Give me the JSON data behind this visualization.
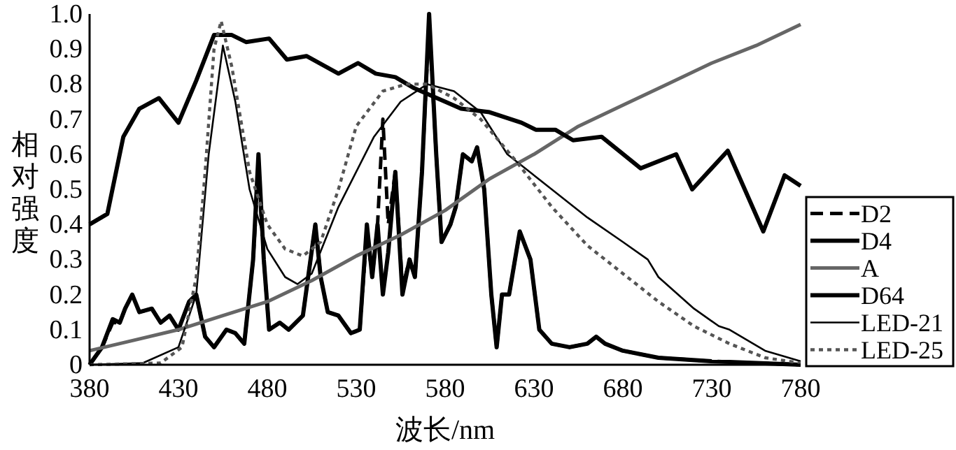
{
  "chart_data": {
    "type": "line",
    "xlabel": "波长/nm",
    "ylabel": "相对强度",
    "xlim": [
      380,
      780
    ],
    "ylim": [
      0,
      1.0
    ],
    "xticks": [
      380,
      430,
      480,
      530,
      580,
      630,
      680,
      730,
      780
    ],
    "yticks": [
      0,
      0.1,
      0.2,
      0.3,
      0.4,
      0.5,
      0.6,
      0.7,
      0.8,
      0.9,
      {
        "value": 1.0,
        "label": "1.0"
      }
    ],
    "grid": false,
    "legend": "bottom right",
    "marker": "none",
    "series": [
      {
        "name": "D2",
        "color": "#000000",
        "line_style": "dashed",
        "x": [
          380,
          387,
          393,
          397,
          400,
          404,
          408,
          415,
          420,
          425,
          430,
          436,
          440,
          445,
          450,
          457,
          462,
          467,
          472,
          475,
          478,
          481,
          487,
          492,
          500,
          507,
          510,
          514,
          520,
          527,
          532,
          536,
          539,
          542,
          545,
          548,
          552,
          556,
          560,
          563,
          567,
          571,
          575,
          578,
          583,
          586,
          590,
          595,
          598,
          602,
          606,
          609,
          612,
          616,
          622,
          628,
          633,
          640,
          650,
          660,
          665,
          670,
          680,
          700,
          730,
          780
        ],
        "values": [
          0.0,
          0.05,
          0.12,
          0.12,
          0.16,
          0.2,
          0.15,
          0.16,
          0.12,
          0.14,
          0.1,
          0.18,
          0.2,
          0.08,
          0.05,
          0.1,
          0.09,
          0.06,
          0.3,
          0.55,
          0.3,
          0.1,
          0.12,
          0.1,
          0.14,
          0.4,
          0.25,
          0.15,
          0.14,
          0.09,
          0.1,
          0.38,
          0.25,
          0.4,
          0.7,
          0.4,
          0.55,
          0.22,
          0.3,
          0.25,
          0.55,
          0.98,
          0.6,
          0.35,
          0.4,
          0.45,
          0.6,
          0.58,
          0.62,
          0.5,
          0.2,
          0.05,
          0.2,
          0.2,
          0.38,
          0.3,
          0.1,
          0.06,
          0.05,
          0.06,
          0.08,
          0.06,
          0.04,
          0.02,
          0.01,
          0.0
        ]
      },
      {
        "name": "D4",
        "color": "#000000",
        "line_style": "solid",
        "x": [
          380,
          387,
          393,
          397,
          400,
          404,
          408,
          415,
          420,
          425,
          430,
          436,
          440,
          445,
          450,
          457,
          462,
          467,
          472,
          475,
          478,
          481,
          487,
          492,
          500,
          507,
          510,
          514,
          520,
          527,
          532,
          536,
          539,
          542,
          545,
          548,
          552,
          556,
          560,
          563,
          567,
          571,
          575,
          578,
          583,
          586,
          590,
          595,
          598,
          602,
          606,
          609,
          612,
          616,
          622,
          628,
          633,
          640,
          650,
          660,
          665,
          670,
          680,
          700,
          730,
          780
        ],
        "values": [
          0.0,
          0.05,
          0.13,
          0.12,
          0.16,
          0.2,
          0.15,
          0.16,
          0.12,
          0.14,
          0.1,
          0.18,
          0.2,
          0.08,
          0.05,
          0.1,
          0.09,
          0.06,
          0.3,
          0.6,
          0.3,
          0.1,
          0.12,
          0.1,
          0.14,
          0.4,
          0.25,
          0.15,
          0.14,
          0.09,
          0.1,
          0.4,
          0.25,
          0.4,
          0.2,
          0.32,
          0.55,
          0.2,
          0.3,
          0.25,
          0.55,
          1.0,
          0.6,
          0.35,
          0.4,
          0.45,
          0.6,
          0.58,
          0.62,
          0.5,
          0.2,
          0.05,
          0.2,
          0.2,
          0.38,
          0.3,
          0.1,
          0.06,
          0.05,
          0.06,
          0.08,
          0.06,
          0.04,
          0.02,
          0.01,
          0.0
        ]
      },
      {
        "name": "A",
        "color": "#666666",
        "line_style": "solid",
        "x": [
          380,
          405,
          430,
          455,
          480,
          505,
          530,
          555,
          580,
          605,
          630,
          655,
          680,
          705,
          730,
          755,
          780
        ],
        "values": [
          0.04,
          0.07,
          0.1,
          0.14,
          0.18,
          0.24,
          0.31,
          0.37,
          0.44,
          0.53,
          0.6,
          0.68,
          0.74,
          0.8,
          0.86,
          0.91,
          0.97
        ]
      },
      {
        "name": "D64",
        "color": "#000000",
        "line_style": "solid",
        "x": [
          380,
          390,
          399,
          408,
          419,
          430,
          440,
          450,
          460,
          468,
          481,
          491,
          502,
          520,
          531,
          541,
          552,
          562,
          580,
          589,
          605,
          623,
          631,
          642,
          652,
          668,
          690,
          710,
          719,
          739,
          759,
          771,
          780
        ],
        "values": [
          0.4,
          0.43,
          0.65,
          0.73,
          0.76,
          0.69,
          0.81,
          0.94,
          0.94,
          0.92,
          0.93,
          0.87,
          0.88,
          0.83,
          0.86,
          0.83,
          0.82,
          0.79,
          0.75,
          0.73,
          0.72,
          0.69,
          0.67,
          0.67,
          0.64,
          0.65,
          0.56,
          0.6,
          0.5,
          0.61,
          0.38,
          0.54,
          0.51
        ]
      },
      {
        "name": "LED-21",
        "color": "#000000",
        "line_style": "solid",
        "x": [
          380,
          410,
          430,
          440,
          447,
          455,
          462,
          470,
          480,
          490,
          497,
          505,
          520,
          540,
          555,
          570,
          585,
          600,
          615,
          640,
          660,
          680,
          694,
          700,
          720,
          734,
          740,
          760,
          780
        ],
        "values": [
          0.0,
          0.005,
          0.05,
          0.2,
          0.6,
          0.91,
          0.75,
          0.5,
          0.33,
          0.25,
          0.23,
          0.26,
          0.45,
          0.65,
          0.75,
          0.8,
          0.78,
          0.72,
          0.6,
          0.5,
          0.42,
          0.35,
          0.3,
          0.25,
          0.16,
          0.11,
          0.1,
          0.04,
          0.01
        ]
      },
      {
        "name": "LED-25",
        "color": "#555555",
        "line_style": "dotted",
        "x": [
          380,
          420,
          432,
          440,
          445,
          450,
          454,
          460,
          470,
          480,
          490,
          500,
          510,
          520,
          530,
          545,
          558,
          570,
          585,
          600,
          620,
          640,
          660,
          680,
          700,
          720,
          740,
          760,
          780
        ],
        "values": [
          0.0,
          0.005,
          0.05,
          0.25,
          0.55,
          0.9,
          0.98,
          0.85,
          0.55,
          0.4,
          0.33,
          0.31,
          0.35,
          0.5,
          0.68,
          0.78,
          0.8,
          0.8,
          0.76,
          0.7,
          0.58,
          0.45,
          0.34,
          0.26,
          0.18,
          0.11,
          0.06,
          0.02,
          0.005
        ]
      }
    ]
  }
}
